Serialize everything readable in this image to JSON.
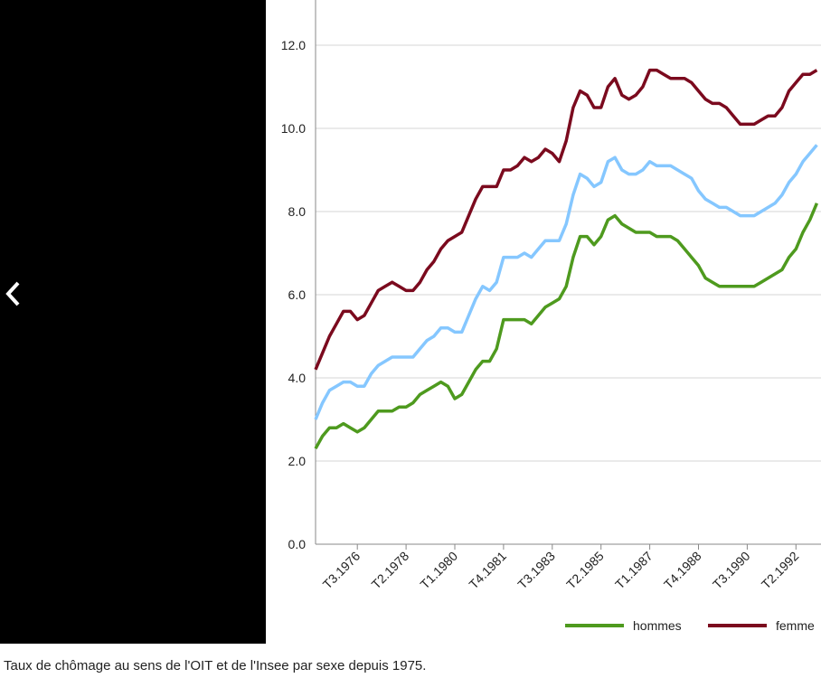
{
  "chart_data": {
    "type": "line",
    "categories": [
      null,
      null,
      null,
      null,
      null,
      null,
      "T3.1976",
      null,
      null,
      null,
      null,
      null,
      null,
      "T2.1978",
      null,
      null,
      null,
      null,
      null,
      null,
      "T1.1980",
      null,
      null,
      null,
      null,
      null,
      null,
      "T4.1981",
      null,
      null,
      null,
      null,
      null,
      null,
      "T3.1983",
      null,
      null,
      null,
      null,
      null,
      null,
      "T2.1985",
      null,
      null,
      null,
      null,
      null,
      null,
      "T1.1987",
      null,
      null,
      null,
      null,
      null,
      null,
      "T4.1988",
      null,
      null,
      null,
      null,
      null,
      null,
      "T3.1990",
      null,
      null,
      null,
      null,
      null,
      null,
      "T2.1992",
      null,
      null,
      null
    ],
    "series": [
      {
        "color": "#85c7ff",
        "values": [
          3.0,
          3.4,
          3.7,
          3.8,
          3.9,
          3.9,
          3.8,
          3.8,
          4.1,
          4.3,
          4.4,
          4.5,
          4.5,
          4.5,
          4.5,
          4.7,
          4.9,
          5.0,
          5.2,
          5.2,
          5.1,
          5.1,
          5.5,
          5.9,
          6.2,
          6.1,
          6.3,
          6.9,
          6.9,
          6.9,
          7.0,
          6.9,
          7.1,
          7.3,
          7.3,
          7.3,
          7.7,
          8.4,
          8.9,
          8.8,
          8.6,
          8.7,
          9.2,
          9.3,
          9.0,
          8.9,
          8.9,
          9.0,
          9.2,
          9.1,
          9.1,
          9.1,
          9.0,
          8.9,
          8.8,
          8.5,
          8.3,
          8.2,
          8.1,
          8.1,
          8.0,
          7.9,
          7.9,
          7.9,
          8.0,
          8.1,
          8.2,
          8.4,
          8.7,
          8.9,
          9.2,
          9.4,
          9.6
        ]
      },
      {
        "name": "hommes",
        "color": "#4e9a1e",
        "values": [
          2.3,
          2.6,
          2.8,
          2.8,
          2.9,
          2.8,
          2.7,
          2.8,
          3.0,
          3.2,
          3.2,
          3.2,
          3.3,
          3.3,
          3.4,
          3.6,
          3.7,
          3.8,
          3.9,
          3.8,
          3.5,
          3.6,
          3.9,
          4.2,
          4.4,
          4.4,
          4.7,
          5.4,
          5.4,
          5.4,
          5.4,
          5.3,
          5.5,
          5.7,
          5.8,
          5.9,
          6.2,
          6.9,
          7.4,
          7.4,
          7.2,
          7.4,
          7.8,
          7.9,
          7.7,
          7.6,
          7.5,
          7.5,
          7.5,
          7.4,
          7.4,
          7.4,
          7.3,
          7.1,
          6.9,
          6.7,
          6.4,
          6.3,
          6.2,
          6.2,
          6.2,
          6.2,
          6.2,
          6.2,
          6.3,
          6.4,
          6.5,
          6.6,
          6.9,
          7.1,
          7.5,
          7.8,
          8.2
        ]
      },
      {
        "name": "femme",
        "color": "#7b0a1e",
        "values": [
          4.2,
          4.6,
          5.0,
          5.3,
          5.6,
          5.6,
          5.4,
          5.5,
          5.8,
          6.1,
          6.2,
          6.3,
          6.2,
          6.1,
          6.1,
          6.3,
          6.6,
          6.8,
          7.1,
          7.3,
          7.4,
          7.5,
          7.9,
          8.3,
          8.6,
          8.6,
          8.6,
          9.0,
          9.0,
          9.1,
          9.3,
          9.2,
          9.3,
          9.5,
          9.4,
          9.2,
          9.7,
          10.5,
          10.9,
          10.8,
          10.5,
          10.5,
          11.0,
          11.2,
          10.8,
          10.7,
          10.8,
          11.0,
          11.4,
          11.4,
          11.3,
          11.2,
          11.2,
          11.2,
          11.1,
          10.9,
          10.7,
          10.6,
          10.6,
          10.5,
          10.3,
          10.1,
          10.1,
          10.1,
          10.2,
          10.3,
          10.3,
          10.5,
          10.9,
          11.1,
          11.3,
          11.3,
          11.4
        ]
      }
    ],
    "ylim": [
      0,
      13
    ],
    "yticks": [
      {
        "value": 0,
        "label": "0.0"
      },
      {
        "value": 2,
        "label": "2.0"
      },
      {
        "value": 4,
        "label": "4.0"
      },
      {
        "value": 6,
        "label": "6.0"
      },
      {
        "value": 8,
        "label": "8.0"
      },
      {
        "value": 10,
        "label": "10.0"
      },
      {
        "value": 12,
        "label": "12.0"
      }
    ],
    "grid": true
  },
  "caption": "Taux de chômage au sens de l'OIT et de l'Insee par sexe depuis 1975."
}
